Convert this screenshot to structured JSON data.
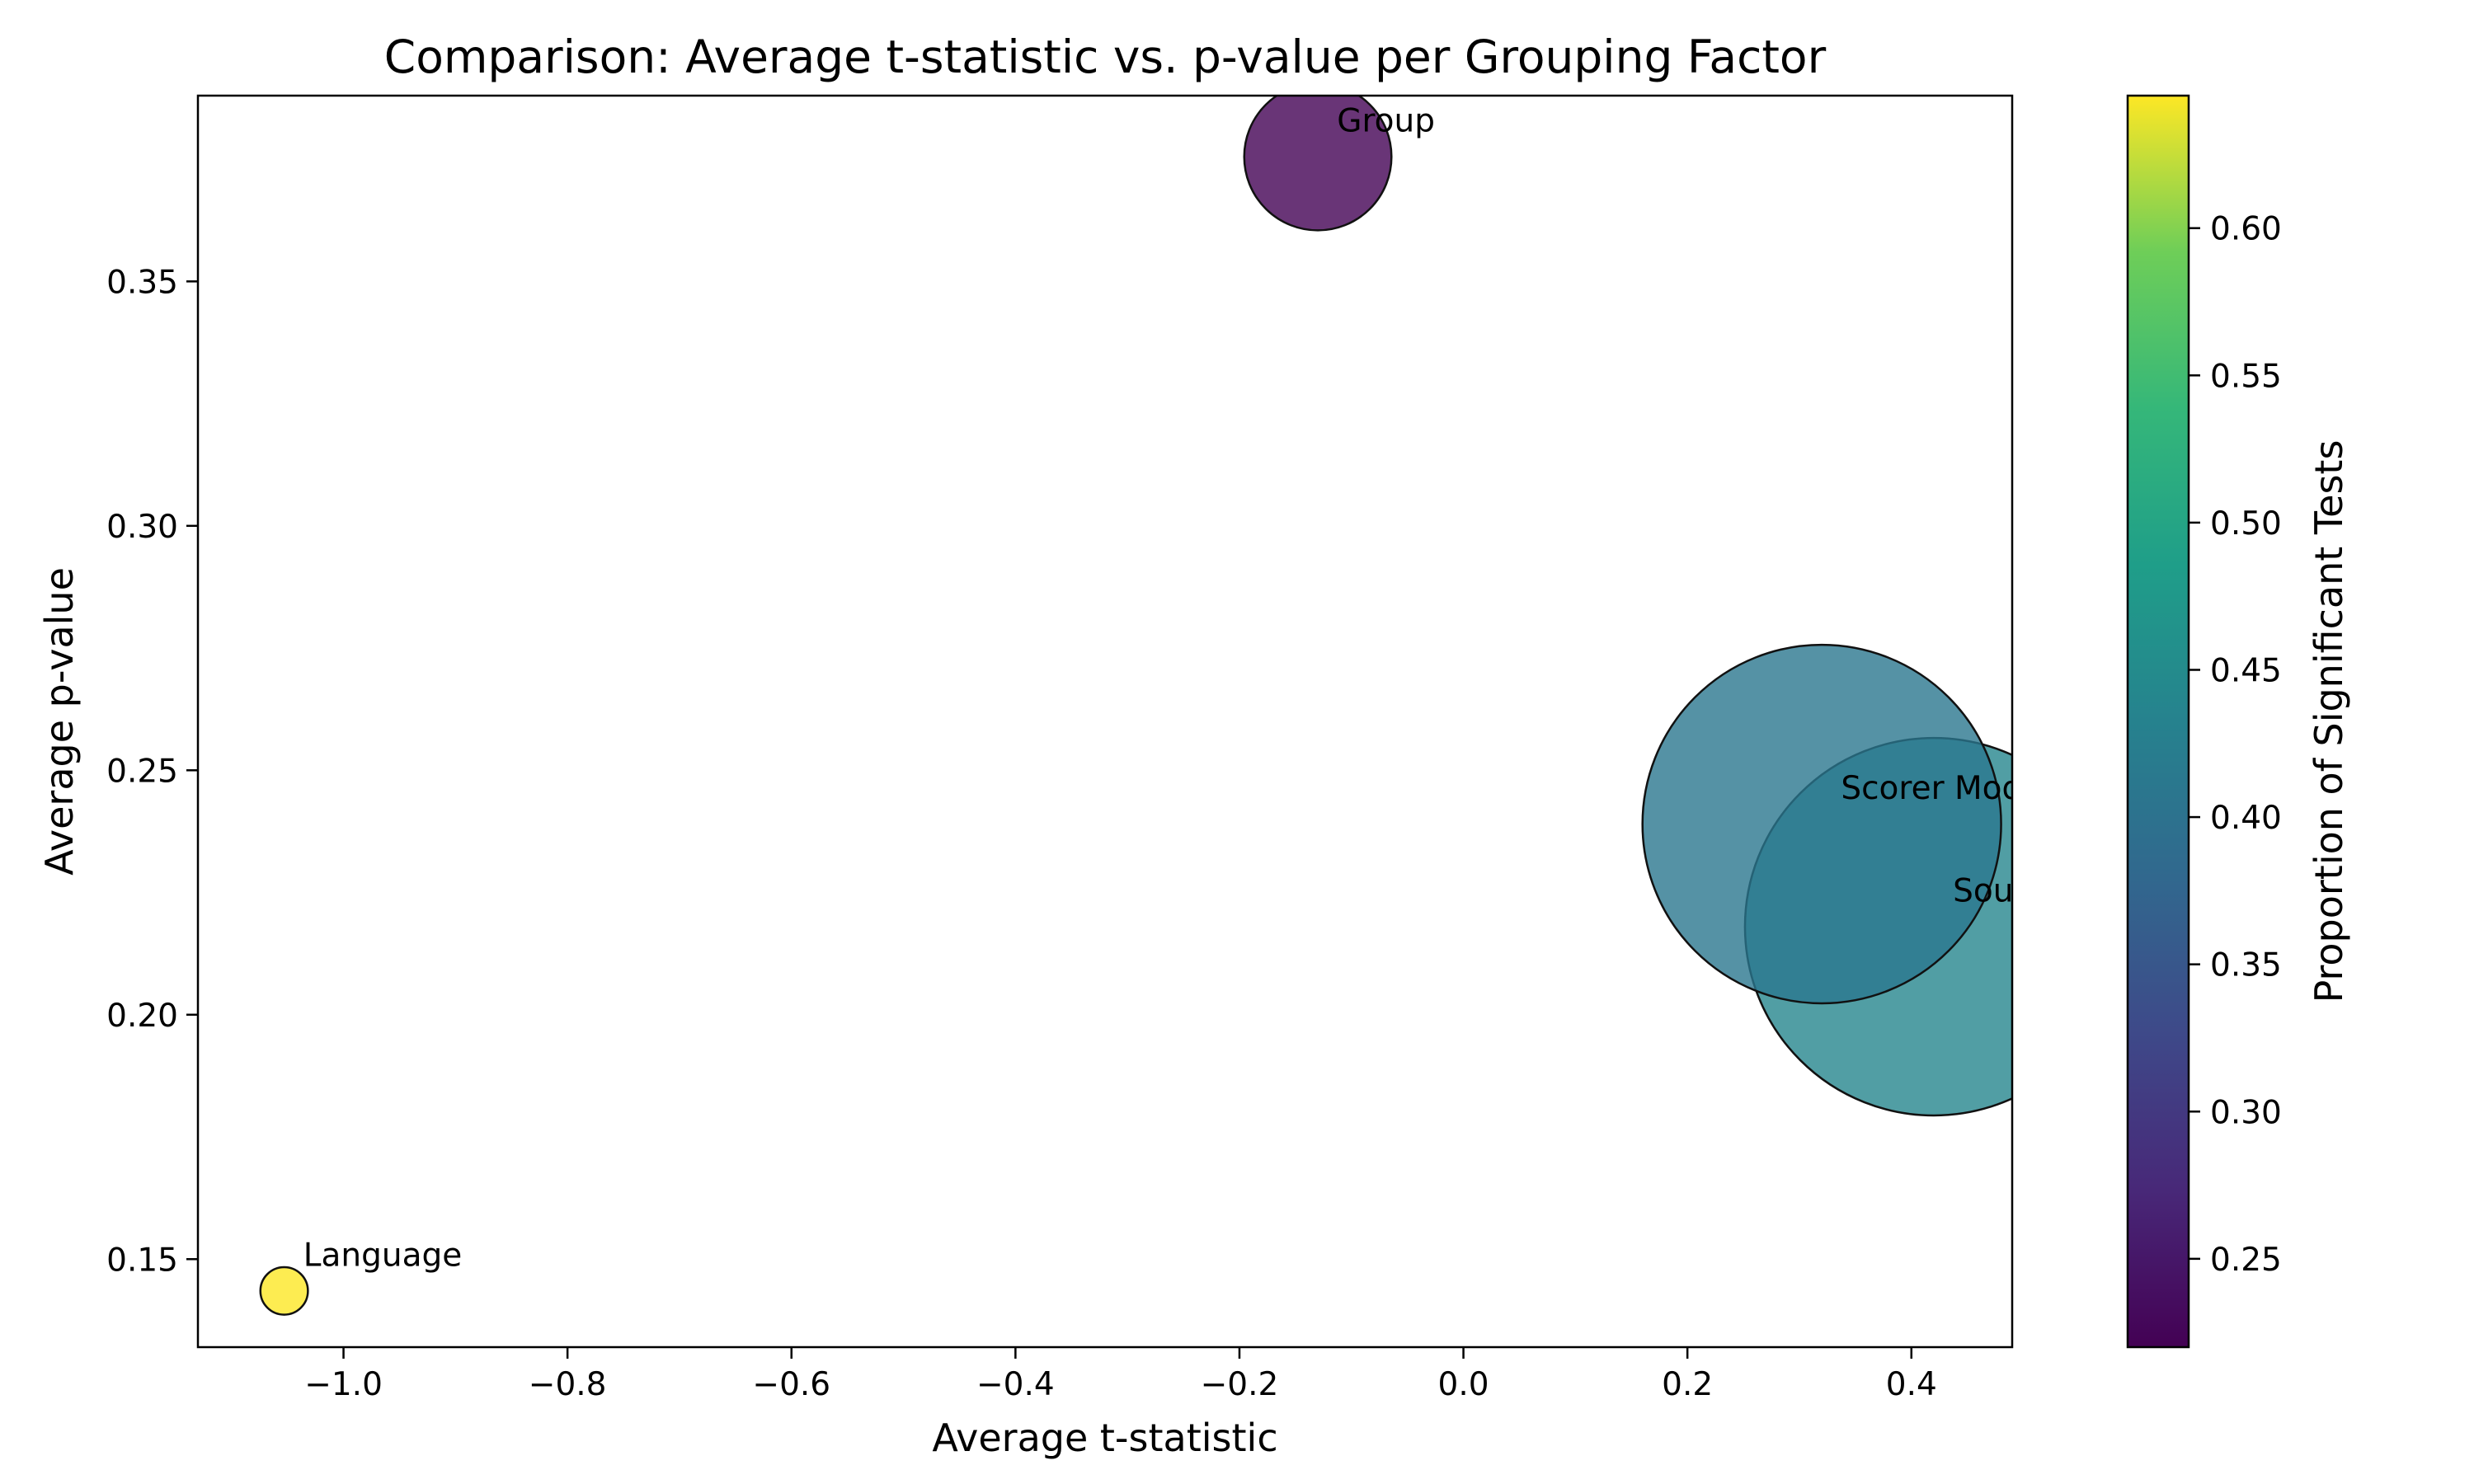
{
  "chart_data": {
    "type": "scatter",
    "title": "Comparison: Average t-statistic vs. p-value per Grouping Factor",
    "xlabel": "Average t-statistic",
    "ylabel": "Average p-value",
    "xlim": [
      -1.13,
      0.49
    ],
    "ylim": [
      0.132,
      0.388
    ],
    "xticks": [
      -1.0,
      -0.8,
      -0.6,
      -0.4,
      -0.2,
      0.0,
      0.2,
      0.4
    ],
    "yticks": [
      0.15,
      0.2,
      0.25,
      0.3,
      0.35
    ],
    "xtick_labels": [
      "−1.0",
      "−0.8",
      "−0.6",
      "−0.4",
      "−0.2",
      "0.0",
      "0.2",
      "0.4"
    ],
    "ytick_labels": [
      "0.15",
      "0.20",
      "0.25",
      "0.30",
      "0.35"
    ],
    "grid": false,
    "colormap": "viridis",
    "colorbar": {
      "label": "Proportion of Significant Tests",
      "range": [
        0.22,
        0.645
      ],
      "ticks": [
        0.25,
        0.3,
        0.35,
        0.4,
        0.45,
        0.5,
        0.55,
        0.6
      ],
      "tick_labels": [
        "0.25",
        "0.30",
        "0.35",
        "0.40",
        "0.45",
        "0.50",
        "0.55",
        "0.60"
      ]
    },
    "points": [
      {
        "label": "Group",
        "x": -0.13,
        "y": 0.3755,
        "proportion": 0.222,
        "size": 62
      },
      {
        "label": "Scorer Model",
        "x": 0.32,
        "y": 0.239,
        "proportion": 0.41,
        "size": 151
      },
      {
        "label": "Source Model",
        "x": 0.42,
        "y": 0.218,
        "proportion": 0.44,
        "size": 159
      },
      {
        "label": "Language",
        "x": -1.053,
        "y": 0.1435,
        "proportion": 0.645,
        "size": 20
      }
    ]
  }
}
